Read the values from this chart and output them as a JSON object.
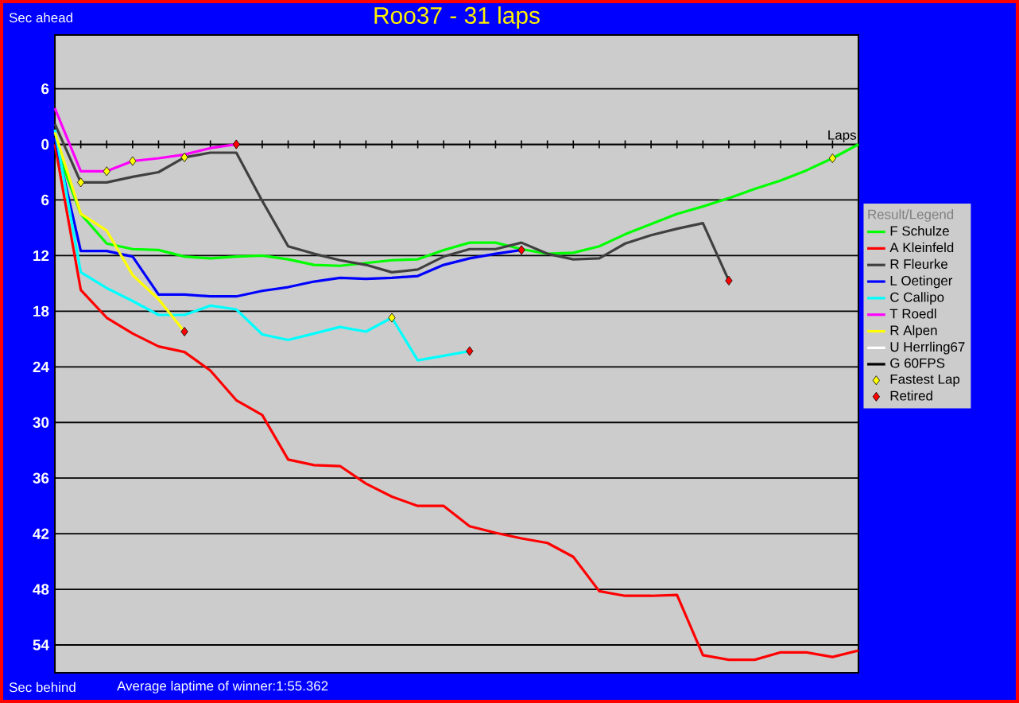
{
  "chart_data": {
    "type": "line",
    "title": "Roo37 - 31 laps",
    "xlabel": "Laps",
    "ylabel": "Sec ahead",
    "legend_title": "Result/Legend",
    "annotations": [
      "Sec behind",
      "Average laptime of winner:1:55.362"
    ],
    "categories": [
      null,
      null,
      null,
      null,
      null,
      null,
      null,
      null,
      null,
      null,
      null,
      null,
      null,
      null,
      null,
      null,
      null,
      null,
      null,
      null,
      null,
      null,
      null,
      null,
      null,
      null,
      null,
      null,
      null,
      null,
      null,
      null
    ],
    "ylim": [
      57,
      -11.8
    ],
    "yticks": [
      {
        "value": -6,
        "label": "6"
      },
      0,
      6,
      12,
      18,
      24,
      30,
      36,
      42,
      48,
      54
    ],
    "grid": "y",
    "legend": "right",
    "tick_labels": "y",
    "marker": "none",
    "line_style": "solid",
    "series": [
      {
        "name": "F Schulze",
        "color": "#00ff00",
        "values": [
          0,
          7.5,
          10.7,
          11.3,
          11.4,
          12.1,
          12.3,
          12.1,
          12.0,
          12.4,
          13.0,
          13.1,
          12.8,
          12.5,
          12.4,
          11.4,
          10.6,
          10.6,
          11.3,
          11.8,
          11.7,
          11.0,
          9.7,
          8.6,
          7.5,
          6.7,
          5.8,
          4.8,
          3.9,
          2.8,
          1.5,
          0
        ]
      },
      {
        "name": "A Kleinfeld",
        "color": "#ff0000",
        "values": [
          0,
          15.7,
          18.7,
          20.4,
          21.8,
          22.4,
          24.4,
          27.6,
          29.2,
          34.0,
          34.6,
          34.7,
          36.6,
          38.0,
          39.0,
          39.0,
          41.2,
          41.9,
          42.5,
          43.0,
          44.5,
          48.2,
          48.7,
          48.7,
          48.6,
          55.1,
          55.6,
          55.6,
          54.8,
          54.8,
          55.3,
          54.6
        ]
      },
      {
        "name": "R Fleurke",
        "color": "#404040",
        "values": [
          -2.2,
          4.1,
          4.1,
          3.5,
          3.0,
          1.4,
          0.9,
          0.9,
          6.1,
          11.0,
          11.8,
          12.5,
          13.0,
          13.8,
          13.5,
          12.1,
          11.3,
          11.3,
          10.6,
          11.8,
          12.4,
          12.3,
          10.7,
          9.8,
          9.1,
          8.5,
          14.7,
          null,
          null,
          null,
          null,
          null
        ]
      },
      {
        "name": "L Oetinger",
        "color": "#0000ff",
        "values": [
          -0.7,
          11.5,
          11.5,
          12.1,
          16.2,
          16.2,
          16.4,
          16.4,
          15.8,
          15.4,
          14.8,
          14.4,
          14.5,
          14.4,
          14.2,
          13.0,
          12.3,
          11.8,
          11.4,
          null,
          null,
          null,
          null,
          null,
          null,
          null,
          null,
          null,
          null,
          null,
          null,
          null
        ]
      },
      {
        "name": "C Callipo",
        "color": "#00ffff",
        "values": [
          -1.6,
          13.8,
          15.5,
          16.9,
          18.4,
          18.4,
          17.4,
          17.8,
          20.5,
          21.1,
          20.4,
          19.7,
          20.2,
          18.7,
          23.3,
          22.8,
          22.3,
          null,
          null,
          null,
          null,
          null,
          null,
          null,
          null,
          null,
          null,
          null,
          null,
          null,
          null,
          null
        ]
      },
      {
        "name": "T Roedl",
        "color": "#ff00ff",
        "values": [
          -3.9,
          2.9,
          2.9,
          1.8,
          1.5,
          1.1,
          0.4,
          0,
          null,
          null,
          null,
          null,
          null,
          null,
          null,
          null,
          null,
          null,
          null,
          null,
          null,
          null,
          null,
          null,
          null,
          null,
          null,
          null,
          null,
          null,
          null,
          null
        ]
      },
      {
        "name": "R Alpen",
        "color": "#ffff00",
        "values": [
          -1.3,
          7.5,
          9.3,
          14.1,
          16.7,
          20.2,
          null,
          null,
          null,
          null,
          null,
          null,
          null,
          null,
          null,
          null,
          null,
          null,
          null,
          null,
          null,
          null,
          null,
          null,
          null,
          null,
          null,
          null,
          null,
          null,
          null,
          null
        ]
      },
      {
        "name": "U Herrling67",
        "color": "#ffffff",
        "values": [
          null,
          null,
          null,
          null,
          null,
          null,
          null,
          null,
          null,
          null,
          null,
          null,
          null,
          null,
          null,
          null,
          null,
          null,
          null,
          null,
          null,
          null,
          null,
          null,
          null,
          null,
          null,
          null,
          null,
          null,
          null,
          null
        ]
      },
      {
        "name": "G 60FPS",
        "color": "#000000",
        "values": [
          null,
          null,
          null,
          null,
          null,
          null,
          null,
          null,
          null,
          null,
          null,
          null,
          null,
          null,
          null,
          null,
          null,
          null,
          null,
          null,
          null,
          null,
          null,
          null,
          null,
          null,
          null,
          null,
          null,
          null,
          null,
          null
        ]
      },
      {
        "name": "Fastest Lap",
        "type": "scatter",
        "marker": "diamond",
        "color": "#ffff00",
        "values": [
          null,
          4.1,
          2.9,
          1.8,
          null,
          1.4,
          null,
          null,
          null,
          null,
          null,
          null,
          null,
          18.7,
          null,
          null,
          null,
          null,
          null,
          null,
          null,
          null,
          null,
          null,
          null,
          null,
          null,
          null,
          null,
          null,
          1.5,
          null
        ]
      },
      {
        "name": "Retired",
        "type": "scatter",
        "marker": "diamond",
        "color": "#ff0000",
        "values": [
          null,
          null,
          null,
          null,
          null,
          20.2,
          null,
          0,
          null,
          null,
          null,
          null,
          null,
          null,
          null,
          null,
          22.3,
          null,
          11.4,
          null,
          null,
          null,
          null,
          null,
          null,
          null,
          14.7,
          null,
          null,
          null,
          null,
          null
        ]
      }
    ]
  }
}
